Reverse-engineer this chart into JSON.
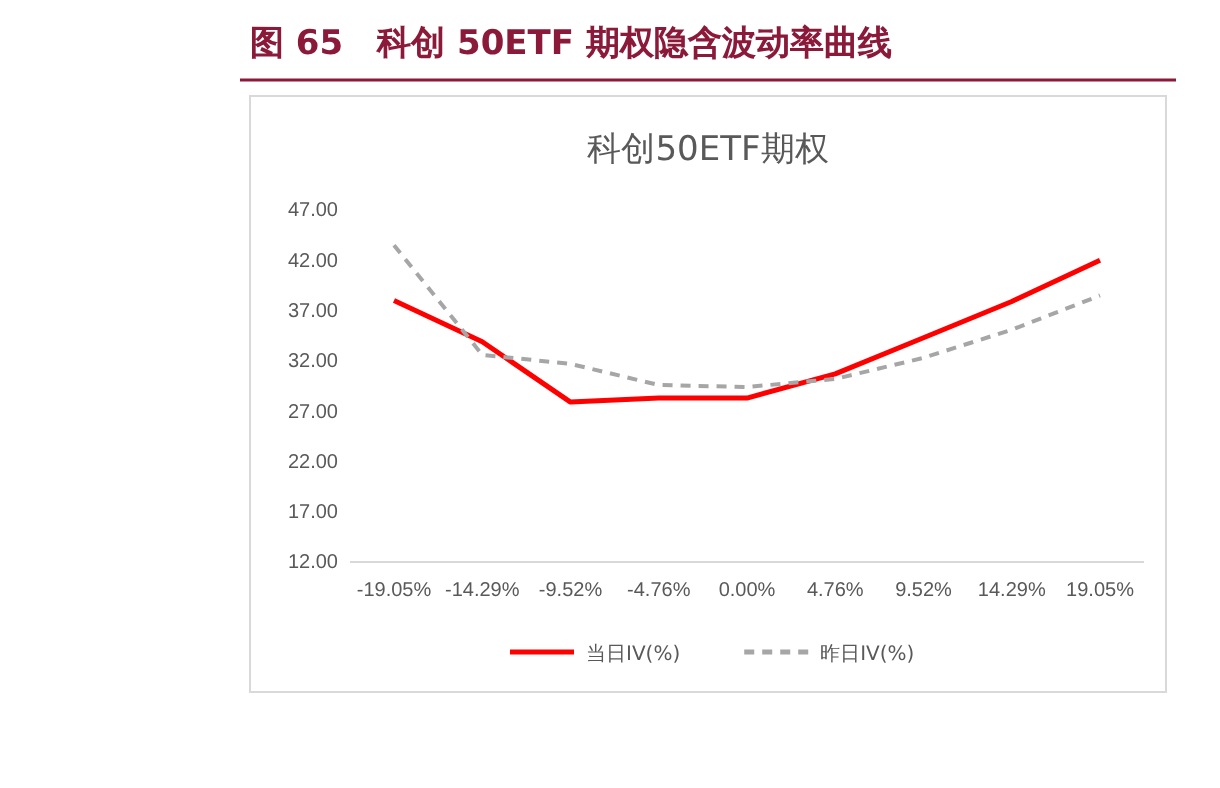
{
  "chart_data": {
    "type": "line",
    "title": "图 65　科创 50ETF 期权隐含波动率曲线",
    "subtitle": "科创50ETF期权",
    "categories": [
      "-19.05%",
      "-14.29%",
      "-9.52%",
      "-4.76%",
      "0.00%",
      "4.76%",
      "9.52%",
      "14.29%",
      "19.05%"
    ],
    "series": [
      {
        "name": "当日IV(%)",
        "color": "#ff0000",
        "line_style": "solid",
        "values": [
          38.0,
          33.9,
          27.9,
          28.3,
          28.3,
          30.7,
          34.3,
          37.9,
          42.0
        ]
      },
      {
        "name": "昨日IV(%)",
        "color": "#a6a6a6",
        "line_style": "dashed",
        "values": [
          43.5,
          32.6,
          31.7,
          29.6,
          29.4,
          30.2,
          32.3,
          35.1,
          38.5
        ]
      }
    ],
    "ylim": [
      12,
      47
    ],
    "yticks": [
      {
        "value": 12,
        "label": "12.00"
      },
      {
        "value": 17,
        "label": "17.00"
      },
      {
        "value": 22,
        "label": "22.00"
      },
      {
        "value": 27,
        "label": "27.00"
      },
      {
        "value": 32,
        "label": "32.00"
      },
      {
        "value": 37,
        "label": "37.00"
      },
      {
        "value": 42,
        "label": "42.00"
      },
      {
        "value": 47,
        "label": "47.00"
      }
    ],
    "grid": false,
    "legend": "bottom",
    "marker": "none"
  }
}
